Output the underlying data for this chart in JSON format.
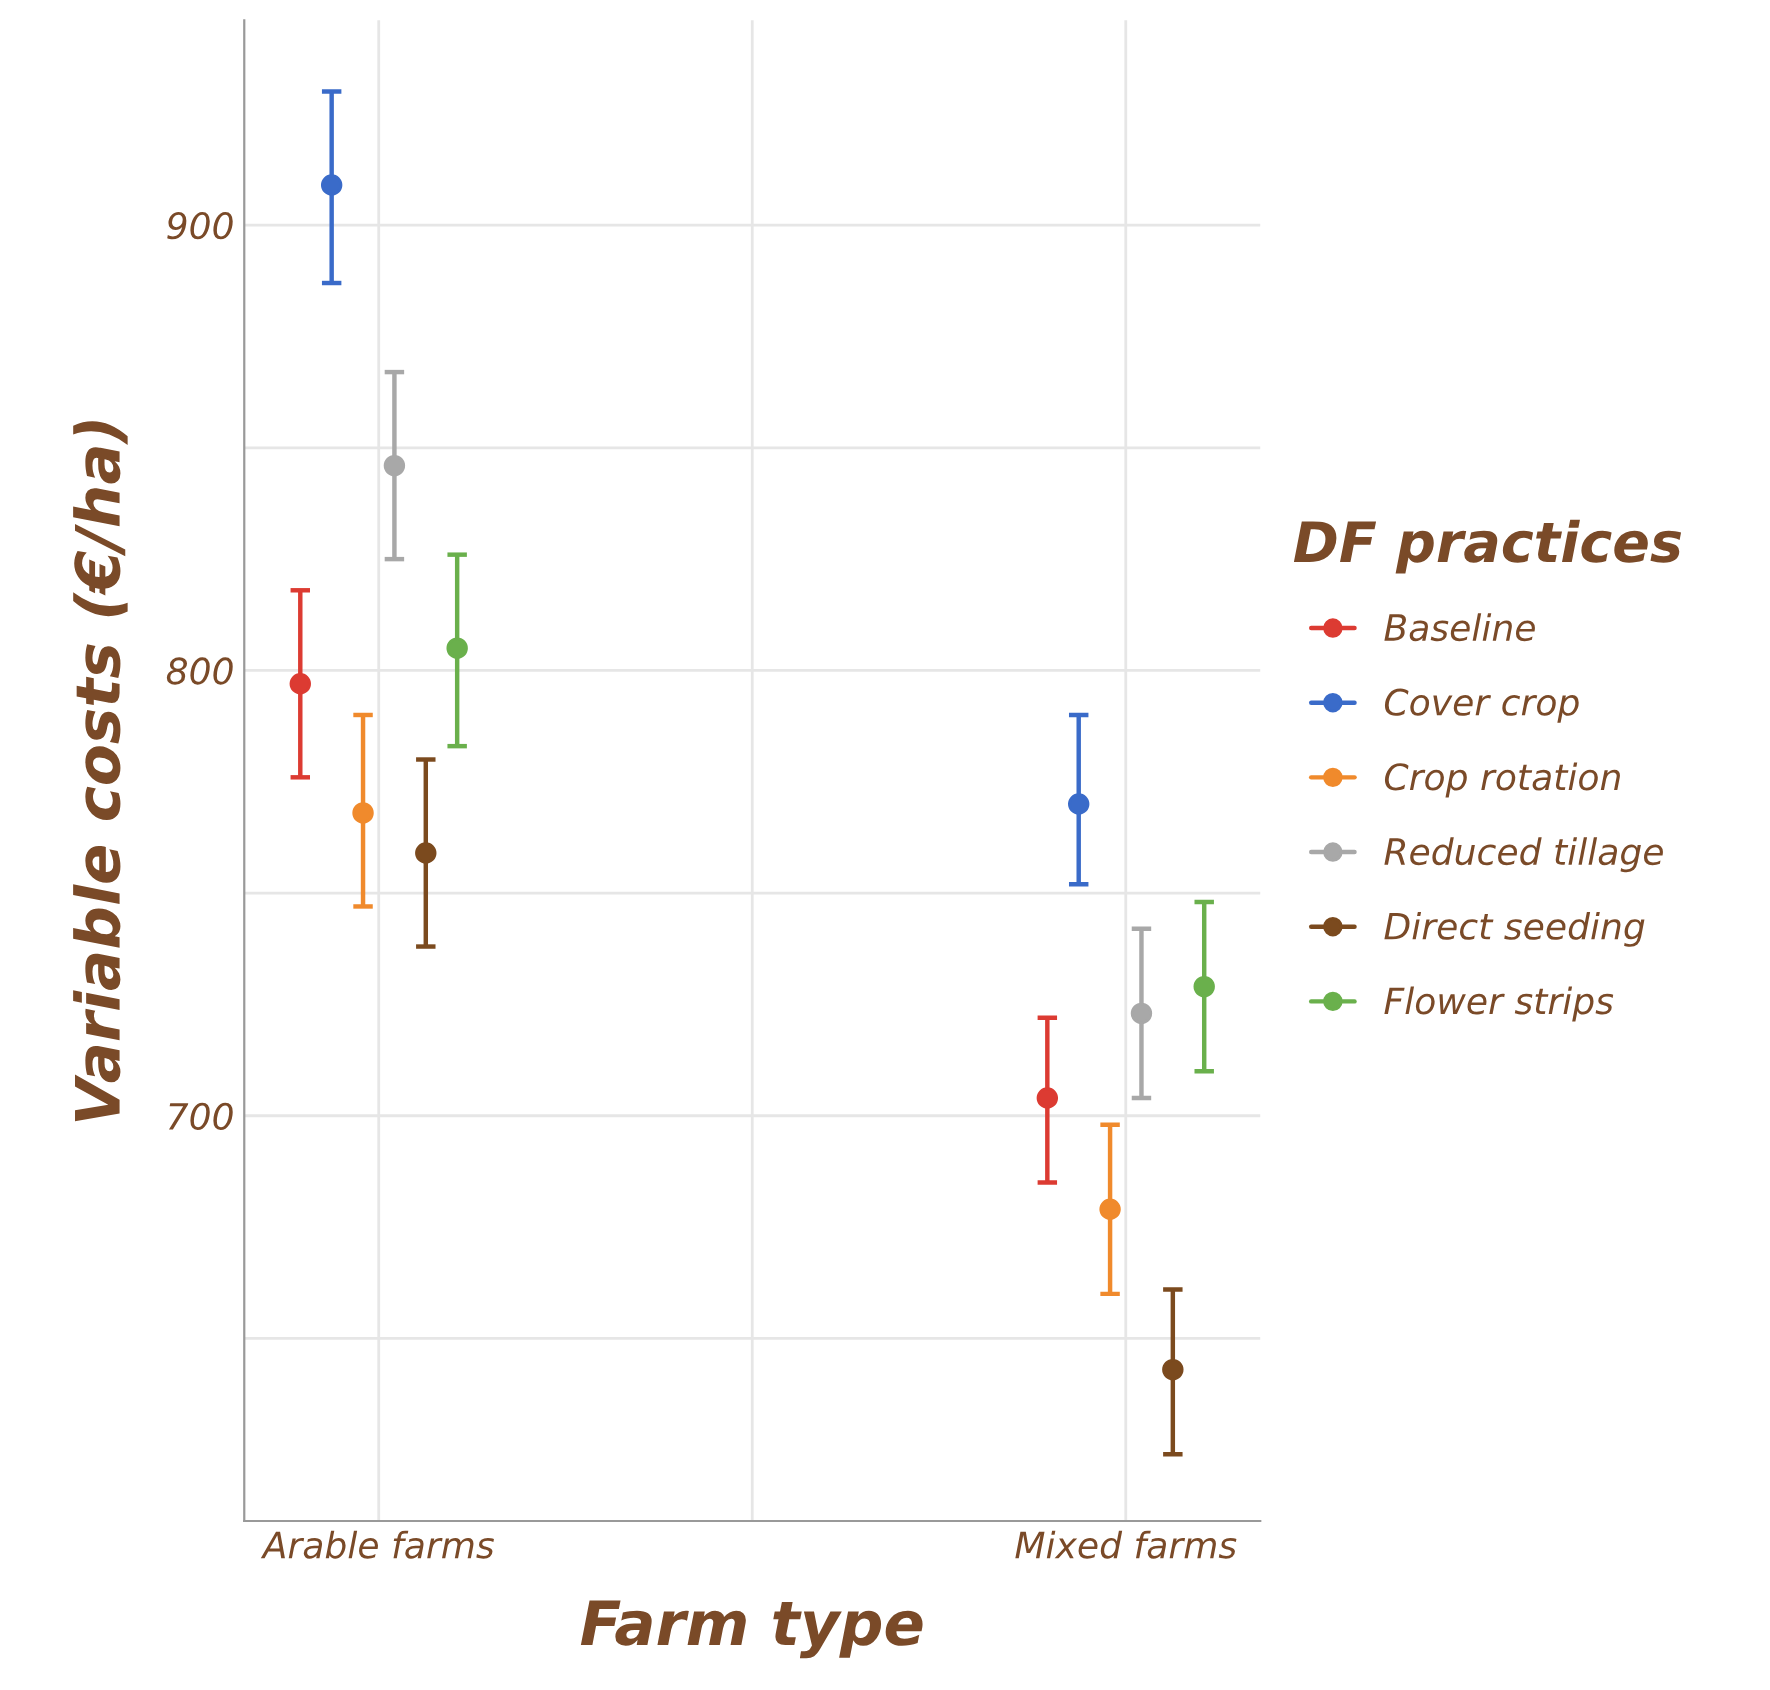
{
  "chart_data": {
    "type": "scatter",
    "xlabel": "Farm type",
    "ylabel": "Variable costs (€/ha)",
    "legend_title": "DF practices",
    "categories": [
      "Arable farms",
      "Mixed farms"
    ],
    "series": [
      {
        "name": "Baseline",
        "color": "#dc3b32",
        "values": [
          797,
          704
        ],
        "errors": [
          [
            776,
            818
          ],
          [
            685,
            722
          ]
        ]
      },
      {
        "name": "Cover crop",
        "color": "#3a6bc9",
        "values": [
          909,
          770
        ],
        "errors": [
          [
            887,
            930
          ],
          [
            752,
            790
          ]
        ]
      },
      {
        "name": "Crop rotation",
        "color": "#f08a2c",
        "values": [
          768,
          679
        ],
        "errors": [
          [
            747,
            790
          ],
          [
            660,
            698
          ]
        ]
      },
      {
        "name": "Reduced tillage",
        "color": "#a8a8a8",
        "values": [
          846,
          723
        ],
        "errors": [
          [
            825,
            867
          ],
          [
            704,
            742
          ]
        ]
      },
      {
        "name": "Direct seeding",
        "color": "#7b4a1e",
        "values": [
          759,
          643
        ],
        "errors": [
          [
            738,
            780
          ],
          [
            624,
            661
          ]
        ]
      },
      {
        "name": "Flower strips",
        "color": "#6ab04c",
        "values": [
          805,
          729
        ],
        "errors": [
          [
            783,
            826
          ],
          [
            710,
            748
          ]
        ]
      }
    ],
    "ylim": [
      609,
      946
    ],
    "yticks": [
      {
        "value": 650,
        "label": null
      },
      700,
      {
        "value": 750,
        "label": null
      },
      800,
      {
        "value": 850,
        "label": null
      },
      900
    ],
    "grid": true,
    "legend": "right",
    "marker": "circle"
  }
}
